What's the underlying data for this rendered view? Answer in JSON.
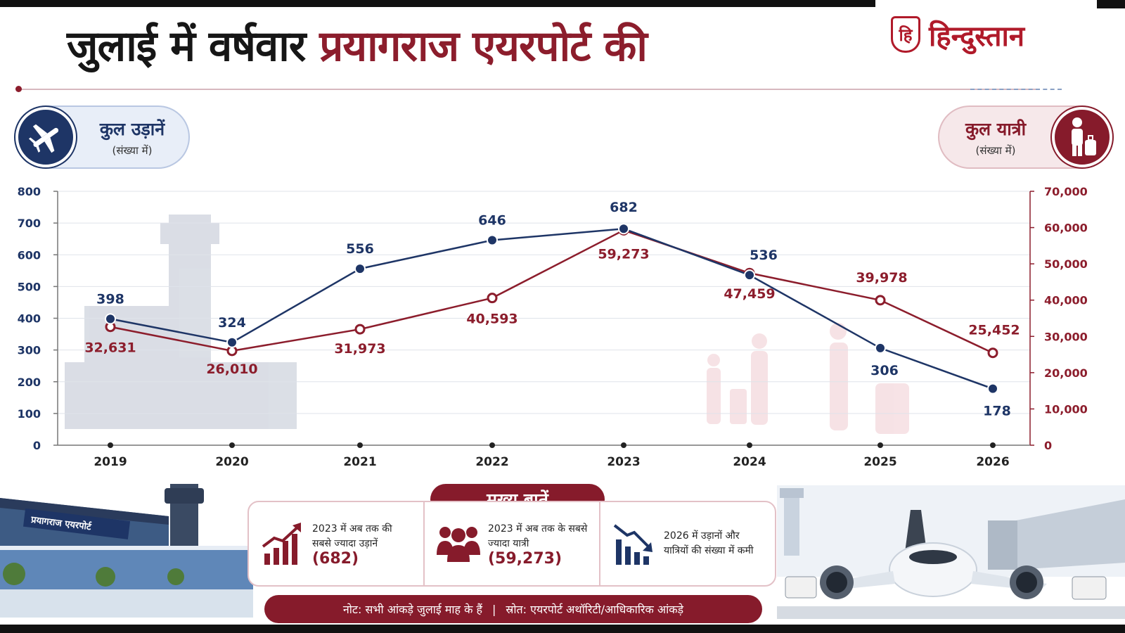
{
  "title": {
    "part1": "जुलाई में वर्षवार",
    "part2": "प्रयागराज एयरपोर्ट की"
  },
  "brand": {
    "mark": "हि",
    "name": "हिन्दुस्तान"
  },
  "legend": {
    "flights": {
      "label": "कुल उड़ानें",
      "sub": "(संख्या में)",
      "icon": "airplane-icon"
    },
    "passengers": {
      "label": "कुल यात्री",
      "sub": "(संख्या में)",
      "icon": "traveler-icon"
    }
  },
  "terminal_sign": "प्रयागराज एयरपोर्ट",
  "chart_data": {
    "type": "line",
    "x": [
      "2019",
      "2020",
      "2021",
      "2022",
      "2023",
      "2024",
      "2025",
      "2026"
    ],
    "series": [
      {
        "name": "कुल उड़ानें",
        "axis": "left",
        "color": "#1e3566",
        "values": [
          398,
          324,
          556,
          646,
          682,
          536,
          306,
          178
        ],
        "labels": [
          "398",
          "324",
          "556",
          "646",
          "682",
          "536",
          "306",
          "178"
        ]
      },
      {
        "name": "कुल यात्री",
        "axis": "right",
        "color": "#8c1d2c",
        "values": [
          32631,
          26010,
          31973,
          40593,
          59273,
          47459,
          39978,
          25452
        ],
        "labels": [
          "32,631",
          "26,010",
          "31,973",
          "40,593",
          "59,273",
          "47,459",
          "39,978",
          "25,452"
        ]
      }
    ],
    "ylim_left": [
      0,
      800
    ],
    "yticks_left": [
      "0",
      "100",
      "200",
      "300",
      "400",
      "500",
      "600",
      "700",
      "800"
    ],
    "ylim_right": [
      0,
      70000
    ],
    "yticks_right": [
      "0",
      "10,000",
      "20,000",
      "30,000",
      "40,000",
      "50,000",
      "60,000",
      "70,000"
    ],
    "grid": true
  },
  "key_points": {
    "title": "मुख्य बातें",
    "items": [
      {
        "icon": "rising-bars-icon",
        "text": "2023 में अब तक की सबसे ज्यादा उड़ानें",
        "value": "(682)"
      },
      {
        "icon": "people-group-icon",
        "text": "2023 में अब तक के सबसे ज्यादा यात्री",
        "value": "(59,273)"
      },
      {
        "icon": "falling-bars-icon",
        "text": "2026 में उड़ानों और यात्रियों की संख्या में कमी",
        "value": ""
      }
    ]
  },
  "note": {
    "left": "नोट: सभी आंकड़े जुलाई माह के हैं",
    "sep": "|",
    "right": "स्रोत: एयरपोर्ट अथॉरिटी/आधिकारिक आंकड़े"
  }
}
